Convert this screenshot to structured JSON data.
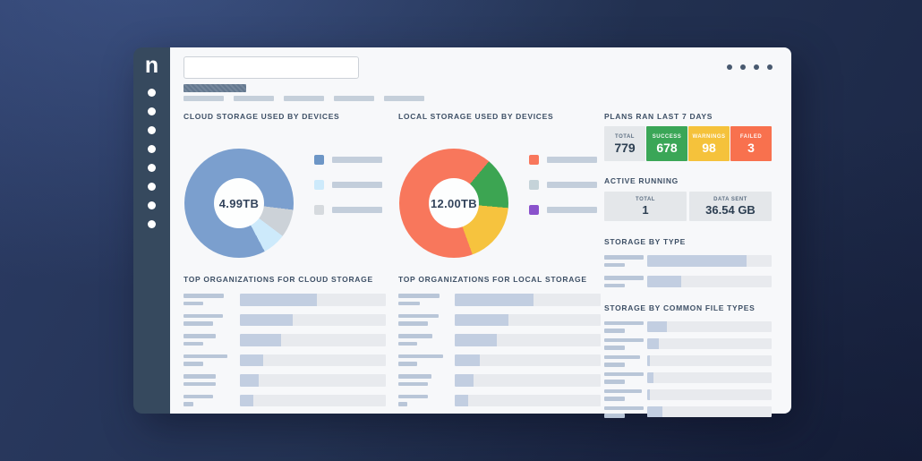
{
  "colors": {
    "background_navy": "#22304f",
    "sidebar": "#36495e",
    "card": "#f7f8fa",
    "heading_text": "#3e5066",
    "skeleton_bar": "#b9c6d8",
    "bar_track": "#e8eaee",
    "bar_fill": "#c2cee1",
    "success_green": "#3aa657",
    "warning_yellow": "#f5c23b",
    "failed_orange": "#f8714e",
    "stat_gray": "#e4e7ea"
  },
  "sidebar": {
    "logo": "n",
    "nav_items": 8
  },
  "topbar": {
    "search_placeholder": "",
    "search_value": "",
    "menu_dots": 4
  },
  "skeleton": {
    "title_width": 70,
    "tabs": [
      45,
      45,
      45,
      45,
      45
    ]
  },
  "cloud_chart": {
    "title": "CLOUD STORAGE USED BY DEVICES",
    "center_label": "4.99TB",
    "type": "donut",
    "rotation_deg": 97,
    "segments": [
      {
        "name": "gray-slice",
        "color": "#ccd2d8",
        "sweep_deg": 30,
        "pct": 8.3
      },
      {
        "name": "lightblue-slice",
        "color": "#cdeafb",
        "sweep_deg": 25,
        "pct": 6.9
      },
      {
        "name": "blue-slice",
        "color": "#7b9fce",
        "sweep_deg": 305,
        "pct": 84.8
      }
    ],
    "legend": [
      {
        "name": "legend-blue",
        "color": "#6d96c6"
      },
      {
        "name": "legend-lightblue",
        "color": "#cdeafb"
      },
      {
        "name": "legend-gray",
        "color": "#d6dade"
      }
    ]
  },
  "local_chart": {
    "title": "LOCAL STORAGE USED BY DEVICES",
    "center_label": "12.00TB",
    "type": "donut",
    "rotation_deg": 40,
    "segments": [
      {
        "name": "green-slice",
        "color": "#3ca552",
        "sweep_deg": 55,
        "pct": 15.3
      },
      {
        "name": "yellow-slice",
        "color": "#f6c33e",
        "sweep_deg": 65,
        "pct": 18.1
      },
      {
        "name": "orange-slice",
        "color": "#f8775c",
        "sweep_deg": 240,
        "pct": 66.6
      }
    ],
    "legend": [
      {
        "name": "legend-orange",
        "color": "#f8775c"
      },
      {
        "name": "legend-pale",
        "color": "#c5d3d9"
      },
      {
        "name": "legend-purple",
        "color": "#8a52cc"
      }
    ]
  },
  "cloud_orgs": {
    "title": "TOP ORGANIZATIONS FOR CLOUD STORAGE",
    "rows": [
      {
        "fill_pct": 53,
        "label_w": [
          45,
          22
        ]
      },
      {
        "fill_pct": 36,
        "label_w": [
          44,
          33
        ]
      },
      {
        "fill_pct": 28,
        "label_w": [
          36,
          22
        ]
      },
      {
        "fill_pct": 16,
        "label_w": [
          49,
          22
        ]
      },
      {
        "fill_pct": 13,
        "label_w": [
          36,
          36
        ]
      },
      {
        "fill_pct": 9,
        "label_w": [
          33,
          11
        ]
      }
    ]
  },
  "local_orgs": {
    "title": "TOP ORGANIZATIONS FOR LOCAL STORAGE",
    "rows": [
      {
        "fill_pct": 54,
        "label_w": [
          46,
          24
        ]
      },
      {
        "fill_pct": 37,
        "label_w": [
          45,
          33
        ]
      },
      {
        "fill_pct": 29,
        "label_w": [
          38,
          21
        ]
      },
      {
        "fill_pct": 17,
        "label_w": [
          50,
          21
        ]
      },
      {
        "fill_pct": 13,
        "label_w": [
          37,
          33
        ]
      },
      {
        "fill_pct": 9,
        "label_w": [
          33,
          10
        ]
      }
    ]
  },
  "plans": {
    "title": "PLANS RAN LAST 7 DAYS",
    "cells": [
      {
        "label": "TOTAL",
        "value": "779",
        "bg": "#e4e7ea",
        "variant": "gray"
      },
      {
        "label": "SUCCESS",
        "value": "678",
        "bg": "#3aa657",
        "variant": "color"
      },
      {
        "label": "WARNINGS",
        "value": "98",
        "bg": "#f5c23b",
        "variant": "color"
      },
      {
        "label": "FAILED",
        "value": "3",
        "bg": "#f8714e",
        "variant": "color"
      }
    ]
  },
  "active": {
    "title": "ACTIVE RUNNING",
    "cells": [
      {
        "label": "TOTAL",
        "value": "1"
      },
      {
        "label": "DATA SENT",
        "value": "36.54 GB"
      }
    ]
  },
  "storage_by_type": {
    "title": "STORAGE BY TYPE",
    "rows": [
      {
        "fill_pct": 80,
        "label_w": [
          44,
          23
        ]
      },
      {
        "fill_pct": 27,
        "label_w": [
          44,
          23
        ]
      }
    ]
  },
  "file_types": {
    "title": "STORAGE BY COMMON FILE TYPES",
    "rows": [
      {
        "fill_pct": 16,
        "label_w": [
          44,
          23
        ]
      },
      {
        "fill_pct": 9,
        "label_w": [
          44,
          23
        ]
      },
      {
        "fill_pct": 2,
        "label_w": [
          40,
          23
        ]
      },
      {
        "fill_pct": 5,
        "label_w": [
          44,
          23
        ]
      },
      {
        "fill_pct": 2,
        "label_w": [
          42,
          23
        ]
      },
      {
        "fill_pct": 12,
        "label_w": [
          44,
          23
        ]
      }
    ]
  }
}
